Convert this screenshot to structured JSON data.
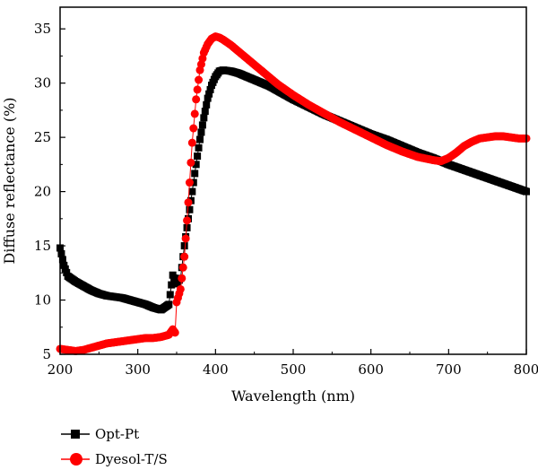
{
  "chart_data": {
    "type": "scatter",
    "xlabel": "Wavelength (nm)",
    "ylabel": "Diffuse reflectance (%)",
    "xlim": [
      200,
      800
    ],
    "ylim": [
      5,
      37
    ],
    "xticks": [
      200,
      300,
      400,
      500,
      600,
      700,
      800
    ],
    "yticks": [
      5,
      10,
      15,
      20,
      25,
      30,
      35
    ],
    "grid": false,
    "legend_position": "bottom-left, outside plot",
    "series": [
      {
        "name": "Opt-Pt",
        "color": "#000000",
        "marker": "square",
        "x": [
          200,
          205,
          210,
          220,
          230,
          240,
          250,
          260,
          270,
          280,
          290,
          300,
          310,
          320,
          330,
          340,
          345,
          350,
          355,
          360,
          365,
          370,
          375,
          380,
          385,
          390,
          395,
          400,
          405,
          410,
          420,
          430,
          440,
          450,
          460,
          470,
          480,
          490,
          500,
          520,
          540,
          560,
          580,
          600,
          620,
          640,
          660,
          680,
          700,
          720,
          740,
          760,
          780,
          800
        ],
        "values": [
          14.8,
          13.2,
          12.2,
          11.7,
          11.3,
          10.9,
          10.6,
          10.4,
          10.3,
          10.2,
          10.0,
          9.8,
          9.6,
          9.3,
          9.1,
          9.6,
          12.3,
          11.5,
          12.0,
          15.0,
          17.5,
          20.0,
          22.5,
          24.8,
          26.8,
          28.6,
          29.8,
          30.6,
          31.1,
          31.2,
          31.1,
          30.9,
          30.6,
          30.3,
          30.0,
          29.7,
          29.3,
          28.9,
          28.5,
          27.8,
          27.1,
          26.5,
          25.9,
          25.3,
          24.8,
          24.2,
          23.6,
          23.1,
          22.5,
          22.0,
          21.5,
          21.0,
          20.5,
          20.0
        ]
      },
      {
        "name": "Dyesol-T/S",
        "color": "#ff0000",
        "marker": "circle",
        "x": [
          200,
          210,
          220,
          230,
          240,
          250,
          260,
          270,
          280,
          290,
          300,
          310,
          320,
          330,
          340,
          345,
          348,
          350,
          355,
          360,
          365,
          370,
          375,
          380,
          385,
          390,
          395,
          400,
          405,
          410,
          420,
          430,
          440,
          450,
          460,
          470,
          480,
          490,
          500,
          520,
          540,
          560,
          580,
          600,
          620,
          640,
          660,
          680,
          690,
          700,
          710,
          720,
          730,
          740,
          750,
          760,
          770,
          780,
          790,
          800
        ],
        "values": [
          5.5,
          5.4,
          5.3,
          5.4,
          5.6,
          5.8,
          6.0,
          6.1,
          6.2,
          6.3,
          6.4,
          6.5,
          6.5,
          6.6,
          6.8,
          7.3,
          7.0,
          9.8,
          11.0,
          14.0,
          19.0,
          24.5,
          28.5,
          31.2,
          32.8,
          33.6,
          34.1,
          34.3,
          34.2,
          34.0,
          33.5,
          32.9,
          32.3,
          31.7,
          31.1,
          30.5,
          29.9,
          29.4,
          28.9,
          28.0,
          27.2,
          26.4,
          25.7,
          25.0,
          24.3,
          23.7,
          23.2,
          22.9,
          22.8,
          23.1,
          23.6,
          24.2,
          24.6,
          24.9,
          25.0,
          25.1,
          25.1,
          25.0,
          24.9,
          24.9
        ]
      }
    ]
  }
}
